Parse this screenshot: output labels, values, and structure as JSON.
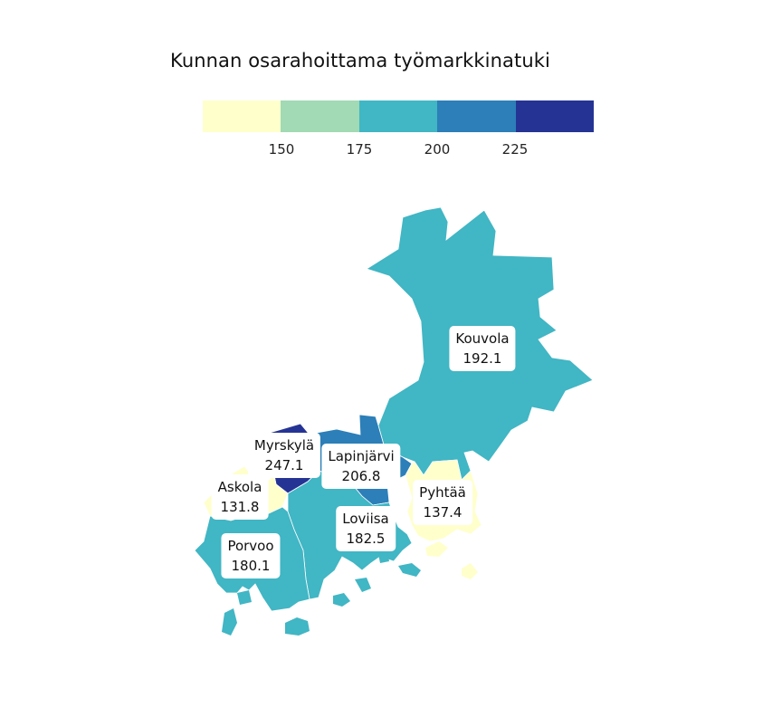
{
  "title": "Kunnan osarahoittama työmarkkinatuki",
  "legend": {
    "colors": [
      "#ffffcc",
      "#a1dab4",
      "#41b6c4",
      "#2c7fb8",
      "#253494"
    ],
    "ticks": [
      "150",
      "175",
      "200",
      "225"
    ]
  },
  "municipalities": [
    {
      "name": "Kouvola",
      "value": "192.1",
      "color": "#41b6c4"
    },
    {
      "name": "Myrskylä",
      "value": "247.1",
      "color": "#253494"
    },
    {
      "name": "Lapinjärvi",
      "value": "206.8",
      "color": "#2c7fb8"
    },
    {
      "name": "Askola",
      "value": "131.8",
      "color": "#ffffcc"
    },
    {
      "name": "Pyhtää",
      "value": "137.4",
      "color": "#ffffcc"
    },
    {
      "name": "Loviisa",
      "value": "182.5",
      "color": "#41b6c4"
    },
    {
      "name": "Porvoo",
      "value": "180.1",
      "color": "#41b6c4"
    }
  ]
}
